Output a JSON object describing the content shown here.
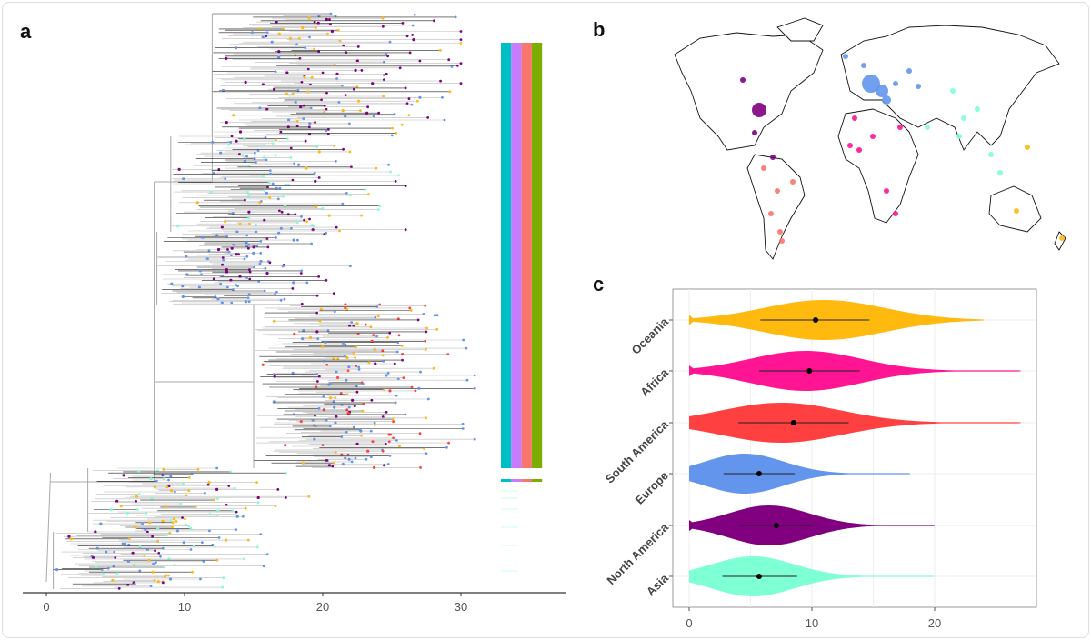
{
  "panels": {
    "a": "a",
    "b": "b",
    "c": "c"
  },
  "chart_data": [
    {
      "panel": "a",
      "type": "tree",
      "x_ticks": [
        0,
        10,
        20,
        30
      ],
      "xlim": [
        -1.7,
        37.6
      ],
      "colors": {
        "Asia": "#7FFFD4",
        "North America": "#800080",
        "Europe": "#6495ED",
        "South America": "#FF4040",
        "Africa": "#FF1493",
        "Oceania": "#FFB90F",
        "branch": "#aaaaaa"
      },
      "annotation_bar_colors": [
        "#00BFC4",
        "#C77CFF",
        "#F8766D",
        "#7CAE00"
      ]
    },
    {
      "panel": "b",
      "type": "map",
      "bubble_colors": {
        "North America": "#800080",
        "Europe": "#6495ED",
        "Asia": "#7FFFD4",
        "South America": "#F8766D",
        "Africa": "#FF1493",
        "Oceania": "#FFB90F"
      }
    },
    {
      "panel": "c",
      "type": "violin",
      "categories": [
        "Oceania",
        "Africa",
        "South America",
        "Europe",
        "North America",
        "Asia"
      ],
      "x_ticks": [
        0,
        10,
        20
      ],
      "xlim": [
        -1.2,
        27.8
      ],
      "grid": true,
      "series": [
        {
          "name": "Oceania",
          "color": "#FFB90F",
          "min": 0,
          "max": 24,
          "mode": 11,
          "mean": 10.3,
          "interval": [
            5.8,
            14.7
          ]
        },
        {
          "name": "Africa",
          "color": "#FF1493",
          "min": 0,
          "max": 27,
          "mode": 9.5,
          "mean": 9.8,
          "interval": [
            5.7,
            13.9
          ]
        },
        {
          "name": "South America",
          "color": "#FF4040",
          "min": 0,
          "max": 27,
          "mode": 7.5,
          "mean": 8.5,
          "interval": [
            4.0,
            13.0
          ]
        },
        {
          "name": "Europe",
          "color": "#6495ED",
          "min": 0,
          "max": 18,
          "mode": 4.5,
          "mean": 5.7,
          "interval": [
            2.8,
            8.6
          ]
        },
        {
          "name": "North America",
          "color": "#800080",
          "min": 0,
          "max": 20,
          "mode": 6.5,
          "mean": 7.1,
          "interval": [
            4.1,
            10.1
          ]
        },
        {
          "name": "Asia",
          "color": "#7FFFD4",
          "min": 0,
          "max": 20,
          "mode": 5.2,
          "mean": 5.7,
          "interval": [
            2.7,
            8.8
          ]
        }
      ]
    }
  ]
}
